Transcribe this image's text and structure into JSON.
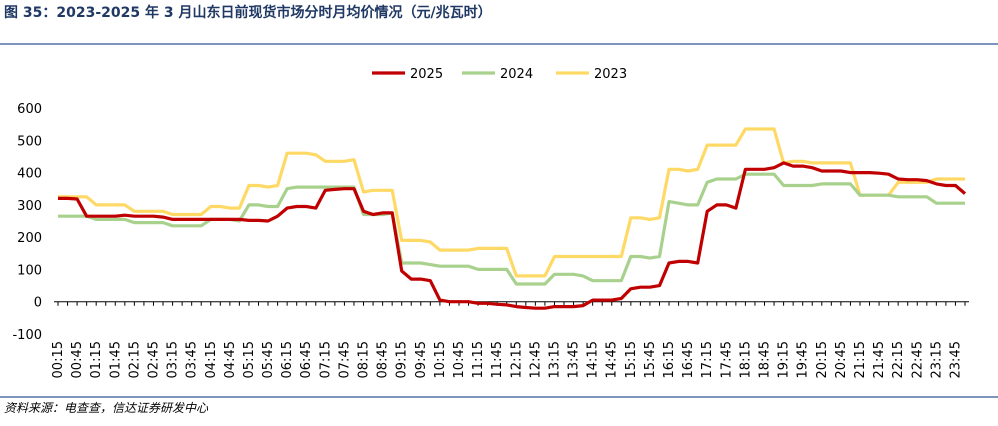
{
  "chart_data": {
    "type": "line",
    "title": "图 35：2023-2025 年 3 月山东日前现货市场分时月均价情况（元/兆瓦时）",
    "source": "资料来源：电查查，信达证券研发中心",
    "categories": [
      "00:15",
      null,
      "00:45",
      null,
      "01:15",
      null,
      "01:45",
      null,
      "02:15",
      null,
      "02:45",
      null,
      "03:15",
      null,
      "03:45",
      null,
      "04:15",
      null,
      "04:45",
      null,
      "05:15",
      null,
      "05:45",
      null,
      "06:15",
      null,
      "06:45",
      null,
      "07:15",
      null,
      "07:45",
      null,
      "08:15",
      null,
      "08:45",
      null,
      "09:15",
      null,
      "09:45",
      null,
      "10:15",
      null,
      "10:45",
      null,
      "11:15",
      null,
      "11:45",
      null,
      "12:15",
      null,
      "12:45",
      null,
      "13:15",
      null,
      "13:45",
      null,
      "14:15",
      null,
      "14:45",
      null,
      "15:15",
      null,
      "15:45",
      null,
      "16:15",
      null,
      "16:45",
      null,
      "17:15",
      null,
      "17:45",
      null,
      "18:15",
      null,
      "18:45",
      null,
      "19:15",
      null,
      "19:45",
      null,
      "20:15",
      null,
      "20:45",
      null,
      "21:15",
      null,
      "21:45",
      null,
      "22:15",
      null,
      "22:45",
      null,
      "23:15",
      null,
      "23:45",
      null
    ],
    "series": [
      {
        "name": "2025",
        "color": "#c00000",
        "values": [
          320,
          320,
          318,
          265,
          265,
          265,
          265,
          268,
          265,
          265,
          265,
          262,
          255,
          255,
          255,
          255,
          255,
          255,
          255,
          255,
          252,
          252,
          250,
          265,
          290,
          295,
          295,
          290,
          345,
          348,
          350,
          350,
          280,
          270,
          275,
          275,
          95,
          70,
          70,
          65,
          5,
          0,
          0,
          0,
          -5,
          -5,
          -8,
          -10,
          -15,
          -18,
          -20,
          -20,
          -15,
          -15,
          -15,
          -12,
          5,
          5,
          5,
          10,
          40,
          45,
          45,
          50,
          120,
          125,
          125,
          120,
          280,
          300,
          300,
          290,
          410,
          410,
          410,
          415,
          430,
          420,
          420,
          415,
          405,
          405,
          405,
          400,
          400,
          400,
          398,
          395,
          380,
          378,
          378,
          375,
          365,
          360,
          360,
          335
        ]
      },
      {
        "name": "2024",
        "color": "#a9d18e",
        "values": [
          265,
          265,
          265,
          265,
          255,
          255,
          255,
          255,
          245,
          245,
          245,
          245,
          235,
          235,
          235,
          235,
          255,
          255,
          255,
          250,
          300,
          300,
          295,
          295,
          350,
          355,
          355,
          355,
          355,
          355,
          355,
          355,
          270,
          270,
          270,
          275,
          120,
          120,
          120,
          115,
          110,
          110,
          110,
          110,
          100,
          100,
          100,
          100,
          55,
          55,
          55,
          55,
          85,
          85,
          85,
          80,
          65,
          65,
          65,
          65,
          140,
          140,
          135,
          140,
          310,
          305,
          300,
          300,
          370,
          380,
          380,
          380,
          395,
          395,
          395,
          395,
          360,
          360,
          360,
          360,
          365,
          365,
          365,
          365,
          330,
          330,
          330,
          330,
          325,
          325,
          325,
          325,
          305,
          305,
          305,
          305
        ]
      },
      {
        "name": "2023",
        "color": "#ffd966",
        "values": [
          325,
          325,
          325,
          325,
          300,
          300,
          300,
          300,
          280,
          280,
          280,
          280,
          270,
          270,
          270,
          270,
          295,
          295,
          290,
          290,
          360,
          360,
          355,
          360,
          460,
          460,
          460,
          455,
          435,
          435,
          435,
          440,
          340,
          345,
          345,
          345,
          190,
          190,
          190,
          185,
          160,
          160,
          160,
          160,
          165,
          165,
          165,
          165,
          80,
          80,
          80,
          80,
          140,
          140,
          140,
          140,
          140,
          140,
          140,
          140,
          260,
          260,
          255,
          260,
          410,
          410,
          405,
          410,
          485,
          485,
          485,
          485,
          535,
          535,
          535,
          535,
          430,
          435,
          435,
          430,
          430,
          430,
          430,
          430,
          330,
          330,
          330,
          330,
          370,
          370,
          370,
          370,
          380,
          380,
          380,
          380
        ]
      }
    ],
    "ylim": [
      -100,
      600
    ],
    "yticks": [
      -100,
      0,
      100,
      200,
      300,
      400,
      500,
      600
    ],
    "legend": "top"
  }
}
